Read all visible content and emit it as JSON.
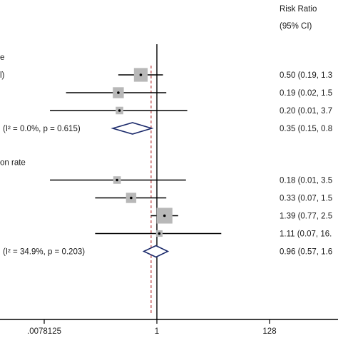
{
  "chart_data": {
    "type": "forest",
    "x_scale": "log2",
    "xlim": [
      0.0078125,
      128
    ],
    "x_ticks": [
      0.0078125,
      1,
      128
    ],
    "x_tick_labels": [
      ".0078125",
      "1",
      "128"
    ],
    "reference_line": 1,
    "overall_effect_line": 0.78,
    "column_headers": [
      "Risk Ratio",
      "(95% CI)"
    ],
    "groups": [
      {
        "label": "e",
        "studies": [
          {
            "label": "l)",
            "rr": 0.5,
            "lo": 0.19,
            "hi": 1.3,
            "weight": 3.0,
            "ci_text": "0.50 (0.19, 1.3"
          },
          {
            "label": "",
            "rr": 0.19,
            "lo": 0.02,
            "hi": 1.5,
            "weight": 2.2,
            "ci_text": "0.19 (0.02, 1.5"
          },
          {
            "label": "",
            "rr": 0.2,
            "lo": 0.01,
            "hi": 3.7,
            "weight": 1.2,
            "ci_text": "0.20 (0.01, 3.7"
          }
        ],
        "subtotal": {
          "label": "(I² = 0.0%, p = 0.615)",
          "rr": 0.35,
          "lo": 0.15,
          "hi": 0.8,
          "ci_text": "0.35 (0.15, 0.8"
        }
      },
      {
        "label": "on rate",
        "studies": [
          {
            "label": "",
            "rr": 0.18,
            "lo": 0.01,
            "hi": 3.5,
            "weight": 1.2,
            "ci_text": "0.18 (0.01, 3.5"
          },
          {
            "label": "",
            "rr": 0.33,
            "lo": 0.07,
            "hi": 1.5,
            "weight": 2.0,
            "ci_text": "0.33 (0.07, 1.5"
          },
          {
            "label": "",
            "rr": 1.39,
            "lo": 0.77,
            "hi": 2.5,
            "weight": 3.6,
            "ci_text": "1.39 (0.77, 2.5"
          },
          {
            "label": "",
            "rr": 1.11,
            "lo": 0.07,
            "hi": 16,
            "weight": 0.9,
            "ci_text": "1.11 (0.07, 16."
          }
        ],
        "subtotal": {
          "label": "(I² = 34.9%, p = 0.203)",
          "rr": 0.96,
          "lo": 0.57,
          "hi": 1.6,
          "ci_text": "0.96 (0.57, 1.6"
        }
      }
    ],
    "colors": {
      "ci_line": "#000000",
      "box": "#b8b8b8",
      "diamond": "#1b2a6b",
      "overall_line": "#b22222",
      "axis": "#000000"
    }
  }
}
